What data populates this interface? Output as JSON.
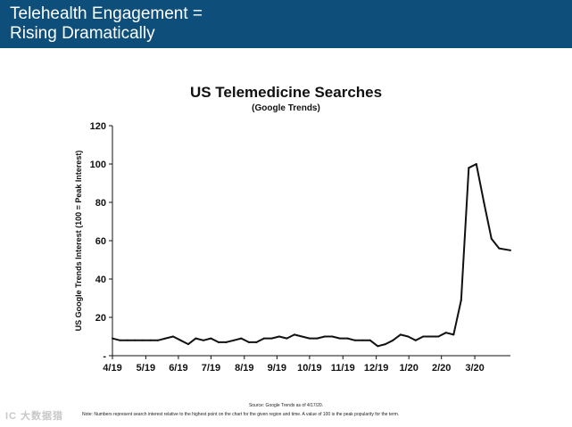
{
  "header": {
    "title": "Telehealth Engagement =\nRising Dramatically",
    "background_color": "#0d4f7a"
  },
  "footer": {
    "source": "Source: Google Trends as of 4/17/20.",
    "note": "Note: Numbers represent search interest relative to the highest point on the chart for the given region and time. A value of 100 is the peak popularity for the term.",
    "watermark": "IC 大数据猎"
  },
  "chart_data": {
    "type": "line",
    "title": "US Telemedicine Searches",
    "subtitle": "(Google Trends)",
    "xlabel": "",
    "ylabel": "US Google Trends Interest (100 = Peak Interest)",
    "ylim": [
      0,
      120
    ],
    "yticks": [
      0,
      20,
      40,
      60,
      80,
      100,
      120
    ],
    "ytick_labels": [
      "-",
      "20",
      "40",
      "60",
      "80",
      "100",
      "120"
    ],
    "x_tick_labels": [
      "4/19",
      "5/19",
      "6/19",
      "7/19",
      "8/19",
      "9/19",
      "10/19",
      "11/19",
      "12/19",
      "1/20",
      "2/20",
      "3/20"
    ],
    "x_tick_positions": [
      0,
      4.4,
      8.7,
      13,
      17.4,
      21.7,
      26,
      30.4,
      34.8,
      39.1,
      43.4,
      47.8
    ],
    "x_range": [
      0,
      52.5
    ],
    "grid": false,
    "line_color": "#111111",
    "series": [
      {
        "name": "Telemedicine",
        "x": [
          0,
          1,
          2,
          3,
          4,
          5,
          6,
          7,
          8,
          9,
          10,
          11,
          12,
          13,
          14,
          15,
          16,
          17,
          18,
          19,
          20,
          21,
          22,
          23,
          24,
          25,
          26,
          27,
          28,
          29,
          30,
          31,
          32,
          33,
          34,
          35,
          36,
          37,
          38,
          39,
          40,
          41,
          42,
          43,
          44,
          45,
          46,
          47,
          48,
          49,
          50,
          51,
          52.5
        ],
        "values": [
          9,
          8,
          8,
          8,
          8,
          8,
          8,
          9,
          10,
          8,
          6,
          9,
          8,
          9,
          7,
          7,
          8,
          9,
          7,
          7,
          9,
          9,
          10,
          9,
          11,
          10,
          9,
          9,
          10,
          10,
          9,
          9,
          8,
          8,
          8,
          5,
          6,
          8,
          11,
          10,
          8,
          10,
          10,
          10,
          12,
          11,
          29,
          98,
          100,
          80,
          61,
          56,
          55
        ]
      }
    ]
  }
}
